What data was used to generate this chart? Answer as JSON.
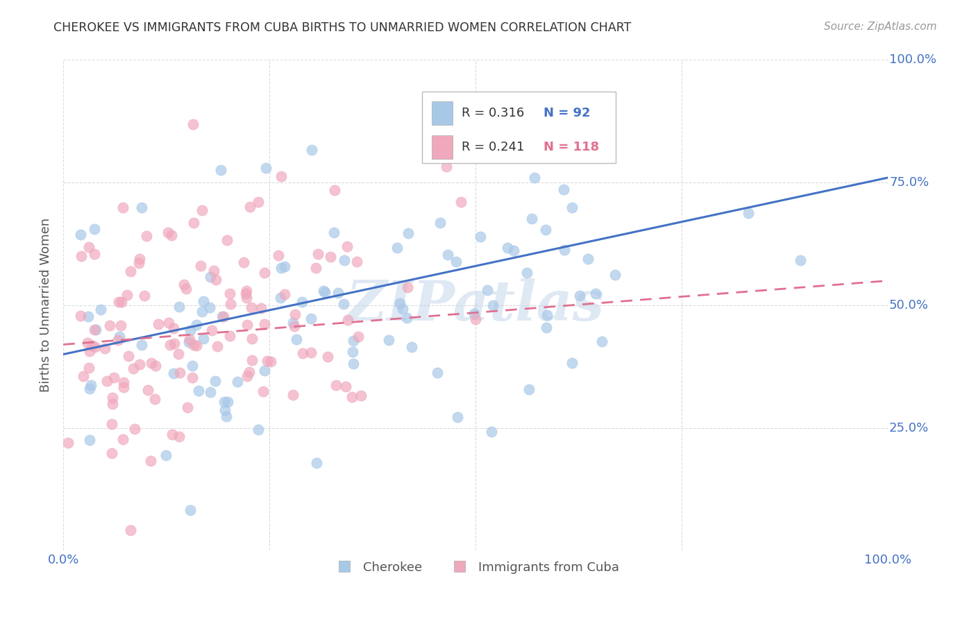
{
  "title": "CHEROKEE VS IMMIGRANTS FROM CUBA BIRTHS TO UNMARRIED WOMEN CORRELATION CHART",
  "source": "Source: ZipAtlas.com",
  "ylabel": "Births to Unmarried Women",
  "legend_blue_r": "R = 0.316",
  "legend_blue_n": "N = 92",
  "legend_pink_r": "R = 0.241",
  "legend_pink_n": "N = 118",
  "legend_blue_label": "Cherokee",
  "legend_pink_label": "Immigrants from Cuba",
  "watermark": "ZIPatlas",
  "xlim": [
    0.0,
    1.0
  ],
  "ylim": [
    0.0,
    1.0
  ],
  "blue_color": "#A8C8E8",
  "pink_color": "#F0A8BC",
  "blue_line_color": "#4472C4",
  "pink_line_color": "#E07090",
  "background_color": "#FFFFFF",
  "grid_color": "#CCCCCC",
  "axis_color": "#4472C4",
  "blue_line_start_y": 0.4,
  "blue_line_end_y": 0.76,
  "pink_line_start_y": 0.42,
  "pink_line_end_y": 0.55
}
